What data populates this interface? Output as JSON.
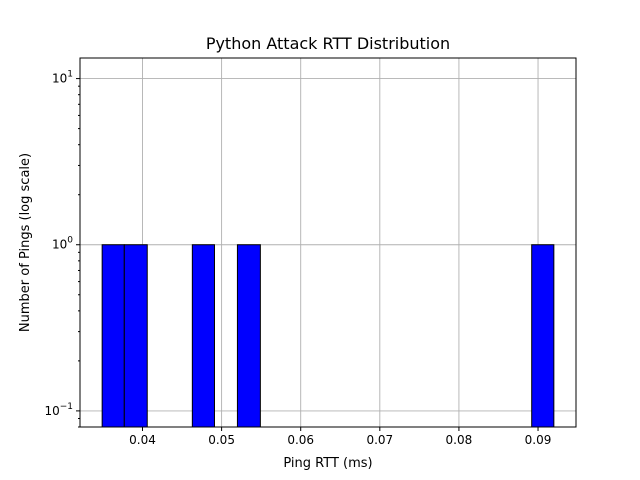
{
  "chart_data": {
    "type": "bar",
    "title": "Python Attack RTT Distribution",
    "xlabel": "Ping RTT (ms)",
    "ylabel": "Number of Pings (log scale)",
    "yscale": "log",
    "xlim": [
      0.0321,
      0.0948
    ],
    "ylim": [
      0.08,
      13.3
    ],
    "grid": true,
    "bar_color": "#0000ff",
    "edge_color": "#000000",
    "x_ticks": [
      {
        "value": 0.04,
        "label": "0.04"
      },
      {
        "value": 0.05,
        "label": "0.05"
      },
      {
        "value": 0.06,
        "label": "0.06"
      },
      {
        "value": 0.07,
        "label": "0.07"
      },
      {
        "value": 0.08,
        "label": "0.08"
      },
      {
        "value": 0.09,
        "label": "0.09"
      }
    ],
    "y_ticks": [
      {
        "value": 0.1,
        "base": "10",
        "exp": "−1"
      },
      {
        "value": 1,
        "base": "10",
        "exp": "0"
      },
      {
        "value": 10,
        "base": "10",
        "exp": "1"
      }
    ],
    "bins": [
      {
        "x0": 0.0349,
        "x1": 0.0377,
        "count": 1
      },
      {
        "x0": 0.0377,
        "x1": 0.0406,
        "count": 1
      },
      {
        "x0": 0.0463,
        "x1": 0.0491,
        "count": 1
      },
      {
        "x0": 0.052,
        "x1": 0.0549,
        "count": 1
      },
      {
        "x0": 0.0892,
        "x1": 0.092,
        "count": 1
      }
    ]
  }
}
